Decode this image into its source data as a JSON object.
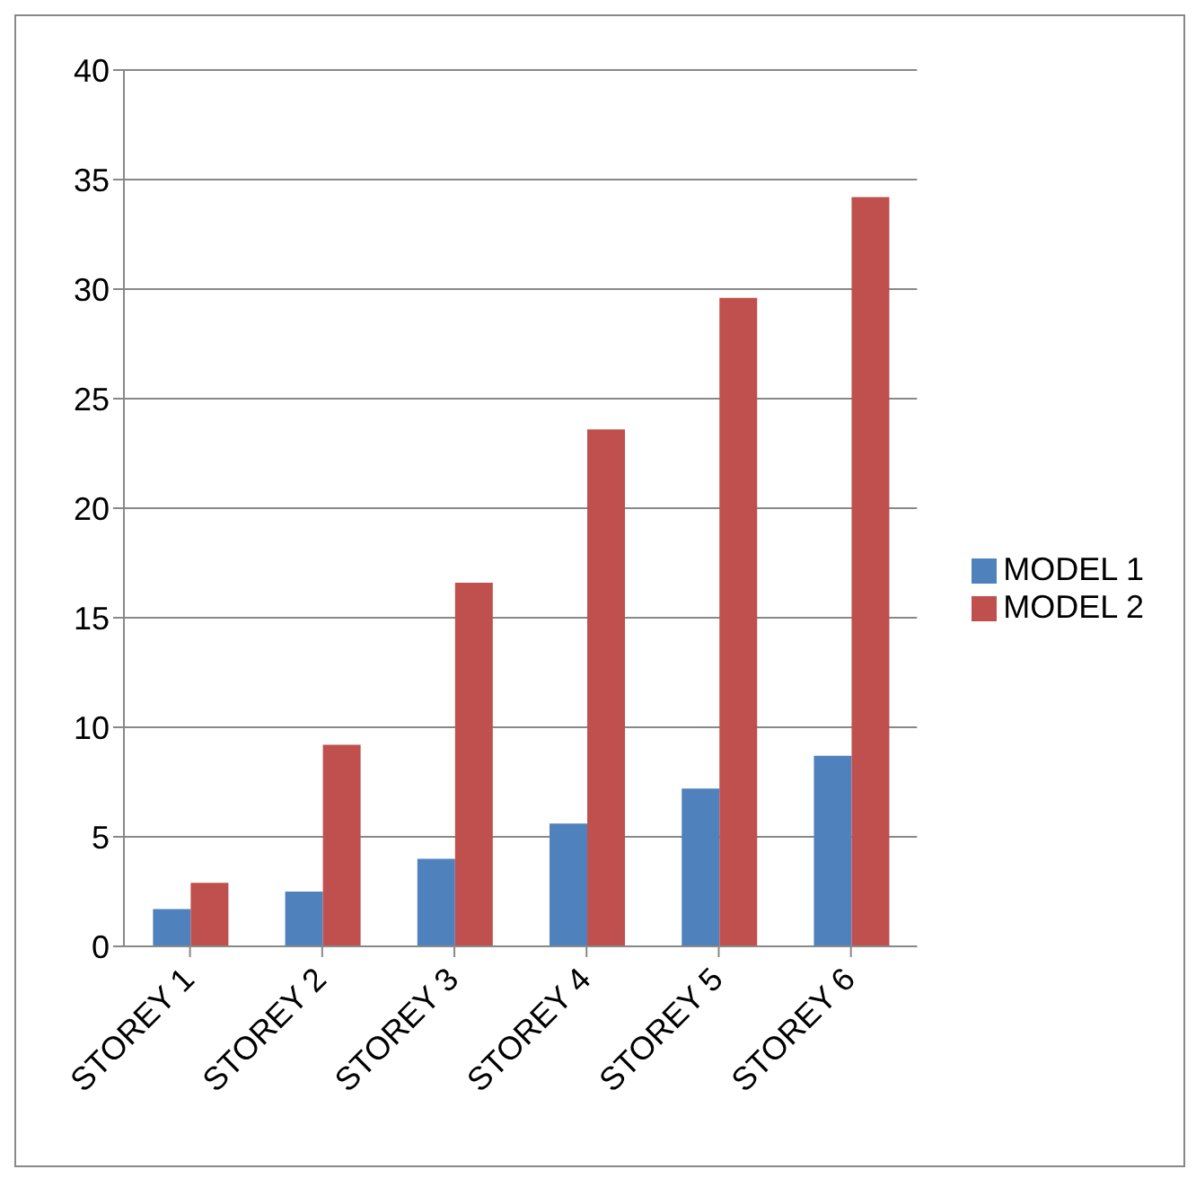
{
  "chart_data": {
    "type": "bar",
    "categories": [
      "STOREY 1",
      "STOREY 2",
      "STOREY 3",
      "STOREY 4",
      "STOREY 5",
      "STOREY 6"
    ],
    "series": [
      {
        "name": "MODEL 1",
        "color": "#4f81bd",
        "values": [
          1.7,
          2.5,
          4.0,
          5.6,
          7.2,
          8.7
        ]
      },
      {
        "name": "MODEL 2",
        "color": "#c0504d",
        "values": [
          2.9,
          9.2,
          16.6,
          23.6,
          29.6,
          34.2
        ]
      }
    ],
    "ylim": [
      0,
      40
    ],
    "yticks": [
      0,
      5,
      10,
      15,
      20,
      25,
      30,
      35,
      40
    ],
    "grid": "y",
    "legend": "right"
  }
}
